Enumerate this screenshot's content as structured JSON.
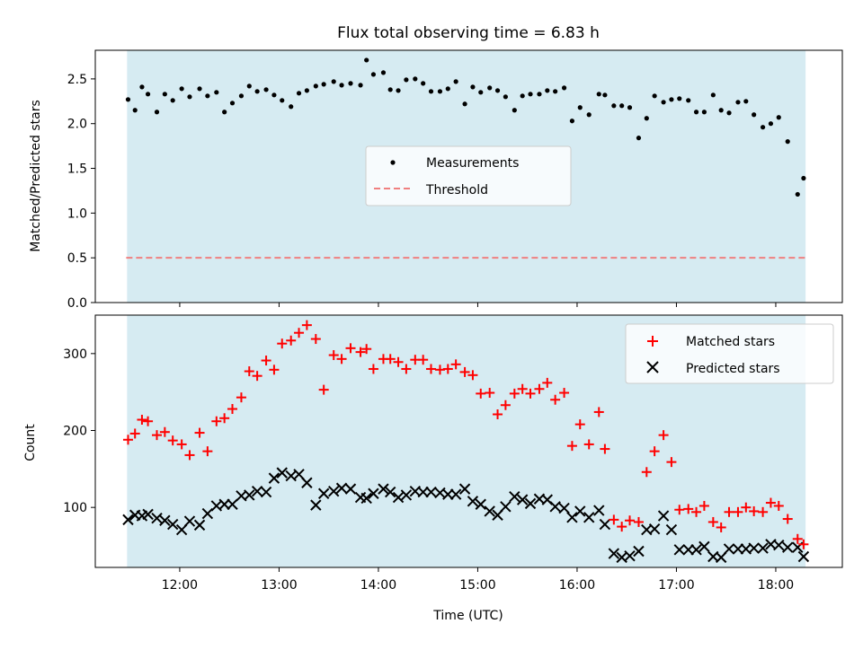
{
  "chart_data": {
    "title": "Flux total observing time = 6.83 h",
    "xlabel": "Time (UTC)",
    "x_ticks": [
      "12:00",
      "13:00",
      "14:00",
      "15:00",
      "16:00",
      "17:00",
      "18:00"
    ],
    "x_range_hours": [
      11.15,
      18.67
    ],
    "shaded_span_hours": [
      11.47,
      18.3
    ],
    "shaded_color": "#add8e6",
    "panels": [
      {
        "type": "scatter",
        "ylabel": "Matched/Predicted stars",
        "ylim": [
          0,
          2.82
        ],
        "y_ticks": [
          "0.0",
          "0.5",
          "1.0",
          "1.5",
          "2.0",
          "2.5"
        ],
        "threshold": 0.5,
        "threshold_color": "#f08080",
        "legend": {
          "placement": "center",
          "entries": [
            "Measurements",
            "Threshold"
          ]
        },
        "measurements": {
          "x": [
            11.48,
            11.55,
            11.62,
            11.68,
            11.77,
            11.85,
            11.93,
            12.02,
            12.1,
            12.2,
            12.28,
            12.37,
            12.45,
            12.53,
            12.62,
            12.7,
            12.78,
            12.87,
            12.95,
            13.03,
            13.12,
            13.2,
            13.28,
            13.37,
            13.45,
            13.55,
            13.63,
            13.72,
            13.82,
            13.88,
            13.95,
            14.05,
            14.12,
            14.2,
            14.28,
            14.37,
            14.45,
            14.53,
            14.62,
            14.7,
            14.78,
            14.87,
            14.95,
            15.03,
            15.12,
            15.2,
            15.28,
            15.37,
            15.45,
            15.53,
            15.62,
            15.7,
            15.78,
            15.87,
            15.95,
            16.03,
            16.12,
            16.22,
            16.28,
            16.37,
            16.45,
            16.53,
            16.62,
            16.7,
            16.78,
            16.87,
            16.95,
            17.03,
            17.12,
            17.2,
            17.28,
            17.37,
            17.45,
            17.53,
            17.62,
            17.7,
            17.78,
            17.87,
            17.95,
            18.03,
            18.12,
            18.22,
            18.28
          ],
          "y": [
            2.27,
            2.15,
            2.41,
            2.33,
            2.13,
            2.33,
            2.26,
            2.39,
            2.3,
            2.39,
            2.31,
            2.35,
            2.13,
            2.23,
            2.31,
            2.42,
            2.36,
            2.38,
            2.32,
            2.26,
            2.19,
            2.34,
            2.37,
            2.42,
            2.44,
            2.47,
            2.43,
            2.45,
            2.43,
            2.71,
            2.55,
            2.57,
            2.38,
            2.37,
            2.49,
            2.5,
            2.45,
            2.36,
            2.36,
            2.39,
            2.47,
            2.22,
            2.41,
            2.35,
            2.4,
            2.37,
            2.3,
            2.15,
            2.31,
            2.33,
            2.33,
            2.37,
            2.36,
            2.4,
            2.03,
            2.18,
            2.1,
            2.33,
            2.32,
            2.2,
            2.2,
            2.18,
            1.84,
            2.06,
            2.31,
            2.24,
            2.27,
            2.28,
            2.26,
            2.13,
            2.13,
            2.32,
            2.15,
            2.12,
            2.24,
            2.25,
            2.1,
            1.96,
            2.0,
            2.07,
            1.8,
            1.21,
            1.39
          ]
        }
      },
      {
        "type": "scatter",
        "ylabel": "Count",
        "ylim": [
          22,
          350
        ],
        "y_ticks": [
          "100",
          "200",
          "300"
        ],
        "legend": {
          "placement": "upper right",
          "entries": [
            "Matched stars",
            "Predicted stars"
          ]
        },
        "matched": {
          "x": [
            11.48,
            11.55,
            11.62,
            11.68,
            11.77,
            11.85,
            11.93,
            12.02,
            12.1,
            12.2,
            12.28,
            12.37,
            12.45,
            12.53,
            12.62,
            12.7,
            12.78,
            12.87,
            12.95,
            13.03,
            13.12,
            13.2,
            13.28,
            13.37,
            13.45,
            13.55,
            13.63,
            13.72,
            13.82,
            13.88,
            13.95,
            14.05,
            14.12,
            14.2,
            14.28,
            14.37,
            14.45,
            14.53,
            14.62,
            14.7,
            14.78,
            14.87,
            14.95,
            15.03,
            15.12,
            15.2,
            15.28,
            15.37,
            15.45,
            15.53,
            15.62,
            15.7,
            15.78,
            15.87,
            15.95,
            16.03,
            16.12,
            16.22,
            16.28,
            16.37,
            16.45,
            16.53,
            16.62,
            16.7,
            16.78,
            16.87,
            16.95,
            17.03,
            17.12,
            17.2,
            17.28,
            17.37,
            17.45,
            17.53,
            17.62,
            17.7,
            17.78,
            17.87,
            17.95,
            18.03,
            18.12,
            18.22,
            18.28
          ],
          "y": [
            188,
            196,
            214,
            212,
            194,
            198,
            187,
            182,
            168,
            197,
            173,
            212,
            216,
            228,
            243,
            277,
            271,
            291,
            279,
            313,
            317,
            327,
            337,
            319,
            253,
            298,
            293,
            307,
            302,
            306,
            280,
            293,
            293,
            289,
            280,
            292,
            292,
            280,
            279,
            280,
            286,
            276,
            272,
            248,
            249,
            221,
            233,
            248,
            254,
            248,
            254,
            262,
            240,
            249,
            180,
            208,
            182,
            224,
            176,
            84,
            75,
            83,
            81,
            146,
            173,
            194,
            159,
            97,
            98,
            94,
            102,
            81,
            74,
            94,
            94,
            100,
            95,
            94,
            106,
            102,
            85,
            59,
            52
          ]
        },
        "predicted": {
          "x": [
            11.48,
            11.55,
            11.62,
            11.68,
            11.77,
            11.85,
            11.93,
            12.02,
            12.1,
            12.2,
            12.28,
            12.37,
            12.45,
            12.53,
            12.62,
            12.7,
            12.78,
            12.87,
            12.95,
            13.03,
            13.12,
            13.2,
            13.28,
            13.37,
            13.45,
            13.55,
            13.63,
            13.72,
            13.82,
            13.88,
            13.95,
            14.05,
            14.12,
            14.2,
            14.28,
            14.37,
            14.45,
            14.53,
            14.62,
            14.7,
            14.78,
            14.87,
            14.95,
            15.03,
            15.12,
            15.2,
            15.28,
            15.37,
            15.45,
            15.53,
            15.62,
            15.7,
            15.78,
            15.87,
            15.95,
            16.03,
            16.12,
            16.22,
            16.28,
            16.37,
            16.45,
            16.53,
            16.62,
            16.7,
            16.78,
            16.87,
            16.95,
            17.03,
            17.12,
            17.2,
            17.28,
            17.37,
            17.45,
            17.53,
            17.62,
            17.7,
            17.78,
            17.87,
            17.95,
            18.03,
            18.12,
            18.22,
            18.28
          ],
          "y": [
            84,
            90,
            89,
            91,
            86,
            83,
            78,
            71,
            82,
            77,
            92,
            102,
            104,
            104,
            115,
            116,
            121,
            120,
            138,
            145,
            141,
            143,
            132,
            103,
            118,
            121,
            125,
            124,
            113,
            112,
            118,
            124,
            120,
            113,
            116,
            121,
            120,
            120,
            119,
            117,
            117,
            124,
            108,
            104,
            95,
            90,
            101,
            114,
            110,
            105,
            111,
            110,
            101,
            99,
            87,
            95,
            87,
            96,
            78,
            40,
            35,
            37,
            43,
            71,
            72,
            89,
            71,
            45,
            45,
            45,
            49,
            36,
            35,
            46,
            46,
            46,
            47,
            47,
            52,
            51,
            48,
            48,
            36
          ]
        }
      }
    ]
  }
}
